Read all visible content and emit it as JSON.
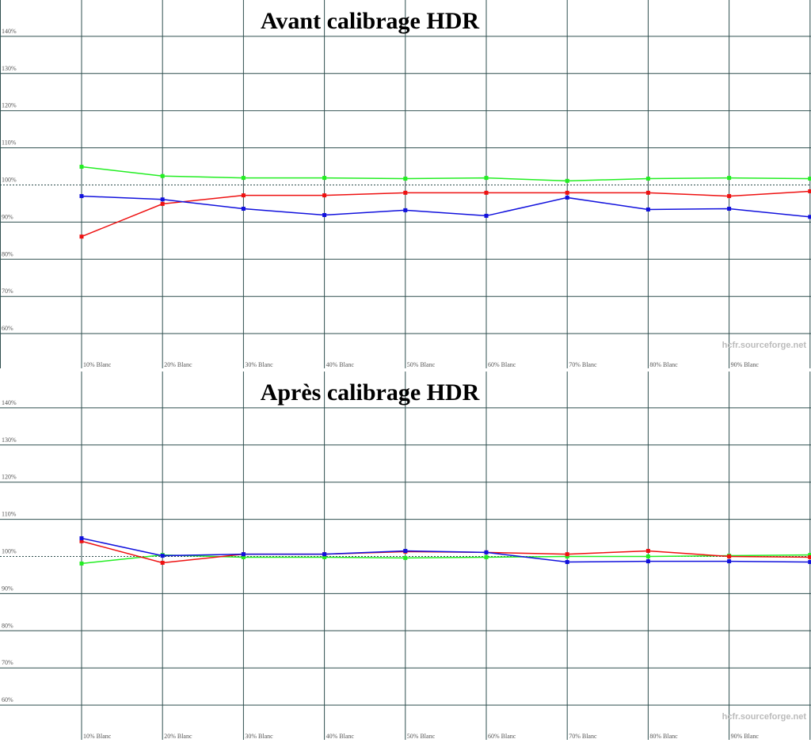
{
  "chart_data": [
    {
      "type": "line",
      "title": "Avant calibrage HDR",
      "categories": [
        "10% Blanc",
        "20% Blanc",
        "30% Blanc",
        "40% Blanc",
        "50% Blanc",
        "60% Blanc",
        "70% Blanc",
        "80% Blanc",
        "90% Blanc",
        null
      ],
      "series": [
        {
          "name": "Vert",
          "color": "#22ee22",
          "values": [
            104.9,
            102.4,
            101.9,
            101.9,
            101.7,
            101.9,
            101.1,
            101.7,
            101.9,
            101.7
          ]
        },
        {
          "name": "Rouge",
          "color": "#ee1111",
          "values": [
            86.1,
            94.9,
            97.2,
            97.2,
            97.9,
            97.9,
            97.9,
            97.9,
            97.0,
            98.3
          ]
        },
        {
          "name": "Bleu",
          "color": "#1111dd",
          "values": [
            97.0,
            96.1,
            93.6,
            91.9,
            93.2,
            91.7,
            96.6,
            93.4,
            93.6,
            91.4
          ]
        }
      ],
      "ylim": [
        50,
        150
      ],
      "yticks": [
        {
          "value": 60,
          "label": "60%"
        },
        {
          "value": 70,
          "label": "70%"
        },
        {
          "value": 80,
          "label": "80%"
        },
        {
          "value": 90,
          "label": "90%"
        },
        {
          "value": 100,
          "label": "100%"
        },
        {
          "value": 110,
          "label": "110%"
        },
        {
          "value": 120,
          "label": "120%"
        },
        {
          "value": 130,
          "label": "130%"
        },
        {
          "value": 140,
          "label": "140%"
        }
      ],
      "reference_line": 100,
      "grid": true,
      "watermark": "hcfr.sourceforge.net"
    },
    {
      "type": "line",
      "title": "Après calibrage HDR",
      "categories": [
        "10% Blanc",
        "20% Blanc",
        "30% Blanc",
        "40% Blanc",
        "50% Blanc",
        "60% Blanc",
        "70% Blanc",
        "80% Blanc",
        "90% Blanc",
        null
      ],
      "series": [
        {
          "name": "Vert",
          "color": "#22ee22",
          "values": [
            98.1,
            100.4,
            99.8,
            99.8,
            99.6,
            99.8,
            100.0,
            100.0,
            100.2,
            100.4
          ]
        },
        {
          "name": "Rouge",
          "color": "#ee1111",
          "values": [
            104.1,
            98.3,
            100.6,
            100.6,
            101.3,
            101.1,
            100.6,
            101.5,
            100.0,
            99.8
          ]
        },
        {
          "name": "Bleu",
          "color": "#1111dd",
          "values": [
            104.9,
            100.2,
            100.6,
            100.6,
            101.5,
            101.1,
            98.5,
            98.7,
            98.7,
            98.5
          ]
        }
      ],
      "ylim": [
        50,
        150
      ],
      "yticks": [
        {
          "value": 60,
          "label": "60%"
        },
        {
          "value": 70,
          "label": "70%"
        },
        {
          "value": 80,
          "label": "80%"
        },
        {
          "value": 90,
          "label": "90%"
        },
        {
          "value": 100,
          "label": "100%"
        },
        {
          "value": 110,
          "label": "110%"
        },
        {
          "value": 120,
          "label": "120%"
        },
        {
          "value": 130,
          "label": "130%"
        },
        {
          "value": 140,
          "label": "140%"
        }
      ],
      "reference_line": 100,
      "grid": true,
      "watermark": "hcfr.sourceforge.net"
    }
  ]
}
